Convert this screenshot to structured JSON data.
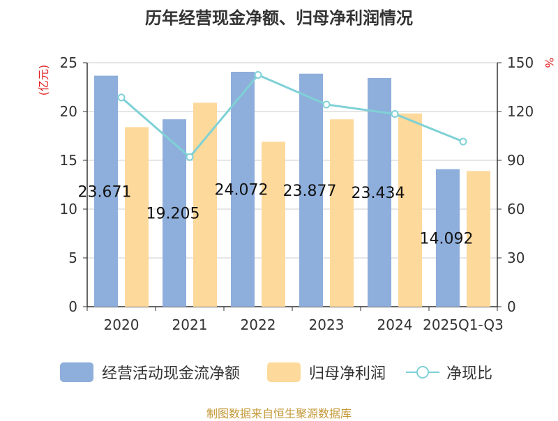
{
  "chart_data": {
    "type": "bar",
    "title": "历年经营现金净额、归母净利润情况",
    "categories": [
      "2020",
      "2021",
      "2022",
      "2023",
      "2024",
      "2025Q1-Q3"
    ],
    "y_left_unit": "(亿元)",
    "y_right_unit": "%",
    "y_left_ticks": [
      0,
      5,
      10,
      15,
      20,
      25
    ],
    "y_right_ticks": [
      0,
      30,
      60,
      90,
      120,
      150
    ],
    "ylim_left": [
      0,
      25
    ],
    "ylim_right": [
      0,
      150
    ],
    "series": [
      {
        "name": "经营活动现金流净额",
        "type": "bar",
        "axis": "left",
        "color": "#8eaedb",
        "values": [
          23.671,
          19.205,
          24.072,
          23.877,
          23.434,
          14.092
        ],
        "labels": [
          "23.671",
          "19.205",
          "24.072",
          "23.877",
          "23.434",
          "14.092"
        ]
      },
      {
        "name": "归母净利润",
        "type": "bar",
        "axis": "left",
        "color": "#fdd99b",
        "values": [
          18.4,
          20.9,
          16.9,
          19.2,
          19.8,
          13.9
        ]
      },
      {
        "name": "净现比",
        "type": "line",
        "axis": "right",
        "color": "#7fd1d6",
        "values": [
          128.6,
          92.0,
          142.5,
          124.3,
          118.5,
          101.5
        ]
      }
    ],
    "grid": true,
    "legend_position": "bottom"
  },
  "source": "制图数据来自恒生聚源数据库"
}
